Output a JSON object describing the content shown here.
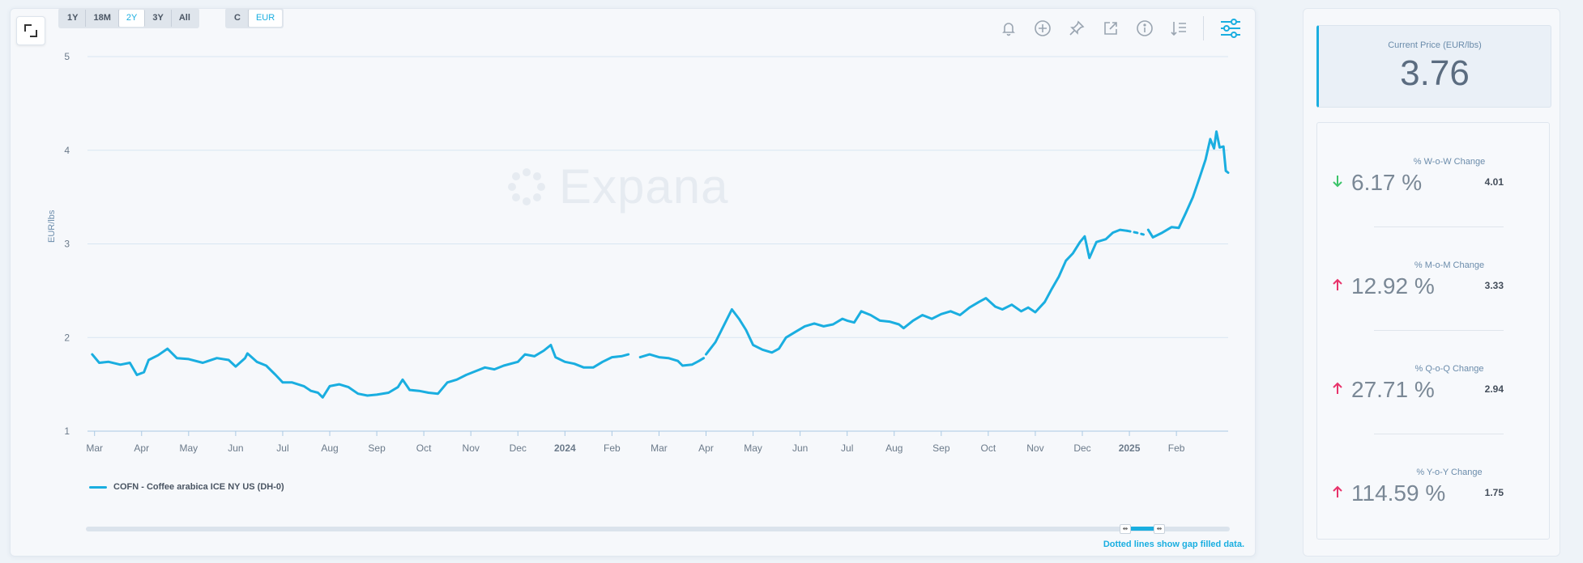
{
  "range_buttons": [
    "1Y",
    "18M",
    "2Y",
    "3Y",
    "All"
  ],
  "active_range": "2Y",
  "currency_buttons": [
    "C",
    "EUR"
  ],
  "active_currency": "EUR",
  "toolbar_icons": [
    "bell-icon",
    "add-circle-icon",
    "pin-icon",
    "external-link-icon",
    "info-icon",
    "sort-lines-icon",
    "settings-sliders-icon"
  ],
  "watermark": "Expana",
  "legend_label": "COFN - Coffee arabica ICE NY US (DH-0)",
  "gap_note": "Dotted lines show gap filled data.",
  "price": {
    "label": "Current Price (EUR/lbs)",
    "value": "3.76"
  },
  "stats": [
    {
      "label": "% W-o-W Change",
      "value": "6.17 %",
      "prev": "4.01",
      "direction": "down",
      "color": "#3cc46a"
    },
    {
      "label": "% M-o-M Change",
      "value": "12.92 %",
      "prev": "3.33",
      "direction": "up",
      "color": "#e8336b"
    },
    {
      "label": "% Q-o-Q Change",
      "value": "27.71 %",
      "prev": "2.94",
      "direction": "up",
      "color": "#e8336b"
    },
    {
      "label": "% Y-o-Y Change",
      "value": "114.59 %",
      "prev": "1.75",
      "direction": "up",
      "color": "#e8336b"
    }
  ],
  "colors": {
    "accent": "#1aaee0",
    "grid": "#d8e6f2",
    "axis_text": "#6b7a8a"
  },
  "chart_data": {
    "type": "line",
    "ylabel": "EUR/lbs",
    "ylim": [
      1,
      5
    ],
    "yticks": [
      1,
      2,
      3,
      4,
      5
    ],
    "grid": true,
    "legend": "bottom-left",
    "x_ticks": [
      {
        "label": "Mar",
        "t": 0
      },
      {
        "label": "Apr",
        "t": 1
      },
      {
        "label": "May",
        "t": 2
      },
      {
        "label": "Jun",
        "t": 3
      },
      {
        "label": "Jul",
        "t": 4
      },
      {
        "label": "Aug",
        "t": 5
      },
      {
        "label": "Sep",
        "t": 6
      },
      {
        "label": "Oct",
        "t": 7
      },
      {
        "label": "Nov",
        "t": 8
      },
      {
        "label": "Dec",
        "t": 9
      },
      {
        "label": "2024",
        "t": 10,
        "bold": true
      },
      {
        "label": "Feb",
        "t": 11
      },
      {
        "label": "Mar",
        "t": 12
      },
      {
        "label": "Apr",
        "t": 13
      },
      {
        "label": "May",
        "t": 14
      },
      {
        "label": "Jun",
        "t": 15
      },
      {
        "label": "Jul",
        "t": 16
      },
      {
        "label": "Aug",
        "t": 17
      },
      {
        "label": "Sep",
        "t": 18
      },
      {
        "label": "Oct",
        "t": 19
      },
      {
        "label": "Nov",
        "t": 20
      },
      {
        "label": "Dec",
        "t": 21
      },
      {
        "label": "2025",
        "t": 22,
        "bold": true
      },
      {
        "label": "Feb",
        "t": 23
      }
    ],
    "x_range": [
      -0.15,
      24.1
    ],
    "series": [
      {
        "name": "COFN - Coffee arabica ICE NY US (DH-0)",
        "segments": [
          {
            "style": "solid",
            "points": [
              [
                -0.05,
                1.82
              ],
              [
                0.1,
                1.73
              ],
              [
                0.3,
                1.74
              ],
              [
                0.55,
                1.71
              ],
              [
                0.75,
                1.73
              ],
              [
                0.9,
                1.6
              ],
              [
                1.05,
                1.63
              ],
              [
                1.15,
                1.76
              ],
              [
                1.35,
                1.81
              ],
              [
                1.55,
                1.88
              ],
              [
                1.75,
                1.78
              ],
              [
                2.0,
                1.77
              ],
              [
                2.3,
                1.73
              ],
              [
                2.6,
                1.78
              ],
              [
                2.85,
                1.76
              ],
              [
                3.0,
                1.69
              ],
              [
                3.2,
                1.78
              ],
              [
                3.25,
                1.83
              ],
              [
                3.45,
                1.74
              ],
              [
                3.65,
                1.7
              ],
              [
                3.85,
                1.6
              ],
              [
                4.0,
                1.52
              ],
              [
                4.2,
                1.52
              ],
              [
                4.45,
                1.48
              ],
              [
                4.6,
                1.43
              ],
              [
                4.75,
                1.41
              ],
              [
                4.85,
                1.36
              ],
              [
                5.0,
                1.48
              ],
              [
                5.2,
                1.5
              ],
              [
                5.4,
                1.47
              ],
              [
                5.6,
                1.4
              ],
              [
                5.8,
                1.38
              ],
              [
                6.0,
                1.39
              ],
              [
                6.25,
                1.41
              ],
              [
                6.45,
                1.47
              ],
              [
                6.55,
                1.55
              ],
              [
                6.7,
                1.44
              ],
              [
                6.9,
                1.43
              ],
              [
                7.1,
                1.41
              ],
              [
                7.3,
                1.4
              ],
              [
                7.5,
                1.52
              ],
              [
                7.7,
                1.55
              ],
              [
                7.9,
                1.6
              ],
              [
                8.1,
                1.64
              ],
              [
                8.3,
                1.68
              ],
              [
                8.5,
                1.66
              ],
              [
                8.7,
                1.7
              ],
              [
                9.0,
                1.74
              ],
              [
                9.15,
                1.82
              ],
              [
                9.35,
                1.8
              ],
              [
                9.55,
                1.86
              ],
              [
                9.7,
                1.92
              ],
              [
                9.8,
                1.79
              ],
              [
                10.0,
                1.74
              ],
              [
                10.2,
                1.72
              ],
              [
                10.4,
                1.68
              ],
              [
                10.6,
                1.68
              ],
              [
                10.8,
                1.74
              ],
              [
                11.0,
                1.79
              ],
              [
                11.2,
                1.8
              ],
              [
                11.35,
                1.82
              ]
            ]
          },
          {
            "style": "solid",
            "points": [
              [
                11.6,
                1.79
              ],
              [
                11.8,
                1.82
              ],
              [
                12.0,
                1.79
              ],
              [
                12.2,
                1.78
              ],
              [
                12.4,
                1.75
              ],
              [
                12.5,
                1.7
              ],
              [
                12.7,
                1.71
              ],
              [
                12.85,
                1.75
              ],
              [
                12.95,
                1.78
              ]
            ]
          },
          {
            "style": "solid",
            "points": [
              [
                13.0,
                1.82
              ],
              [
                13.2,
                1.95
              ],
              [
                13.35,
                2.1
              ],
              [
                13.55,
                2.3
              ],
              [
                13.7,
                2.2
              ],
              [
                13.85,
                2.08
              ],
              [
                14.0,
                1.92
              ],
              [
                14.2,
                1.87
              ],
              [
                14.4,
                1.84
              ],
              [
                14.55,
                1.88
              ],
              [
                14.7,
                2.0
              ],
              [
                14.9,
                2.06
              ],
              [
                15.1,
                2.12
              ],
              [
                15.3,
                2.15
              ],
              [
                15.5,
                2.12
              ],
              [
                15.7,
                2.14
              ],
              [
                15.9,
                2.2
              ],
              [
                16.0,
                2.18
              ],
              [
                16.15,
                2.16
              ],
              [
                16.3,
                2.28
              ],
              [
                16.5,
                2.24
              ],
              [
                16.7,
                2.18
              ],
              [
                16.9,
                2.17
              ],
              [
                17.1,
                2.14
              ],
              [
                17.2,
                2.1
              ],
              [
                17.4,
                2.18
              ],
              [
                17.6,
                2.24
              ],
              [
                17.8,
                2.2
              ],
              [
                18.0,
                2.25
              ],
              [
                18.2,
                2.28
              ],
              [
                18.4,
                2.24
              ],
              [
                18.6,
                2.32
              ],
              [
                18.8,
                2.38
              ],
              [
                18.95,
                2.42
              ],
              [
                19.15,
                2.33
              ],
              [
                19.3,
                2.3
              ],
              [
                19.5,
                2.35
              ],
              [
                19.7,
                2.28
              ],
              [
                19.85,
                2.32
              ],
              [
                20.0,
                2.27
              ],
              [
                20.2,
                2.38
              ],
              [
                20.35,
                2.52
              ],
              [
                20.5,
                2.65
              ],
              [
                20.65,
                2.82
              ],
              [
                20.8,
                2.9
              ],
              [
                20.95,
                3.02
              ],
              [
                21.05,
                3.08
              ],
              [
                21.15,
                2.85
              ],
              [
                21.3,
                3.02
              ],
              [
                21.5,
                3.05
              ],
              [
                21.65,
                3.12
              ],
              [
                21.8,
                3.15
              ],
              [
                21.95,
                3.14
              ]
            ]
          },
          {
            "style": "dotted",
            "points": [
              [
                21.95,
                3.14
              ],
              [
                22.15,
                3.12
              ],
              [
                22.3,
                3.1
              ]
            ]
          },
          {
            "style": "solid",
            "points": [
              [
                22.4,
                3.15
              ],
              [
                22.5,
                3.07
              ],
              [
                22.7,
                3.12
              ],
              [
                22.9,
                3.18
              ],
              [
                23.05,
                3.17
              ],
              [
                23.2,
                3.33
              ],
              [
                23.35,
                3.5
              ],
              [
                23.5,
                3.72
              ],
              [
                23.62,
                3.9
              ],
              [
                23.72,
                4.12
              ],
              [
                23.8,
                4.02
              ],
              [
                23.85,
                4.2
              ],
              [
                23.92,
                4.03
              ],
              [
                24.0,
                4.04
              ],
              [
                24.05,
                3.78
              ],
              [
                24.1,
                3.76
              ]
            ]
          }
        ]
      }
    ]
  }
}
